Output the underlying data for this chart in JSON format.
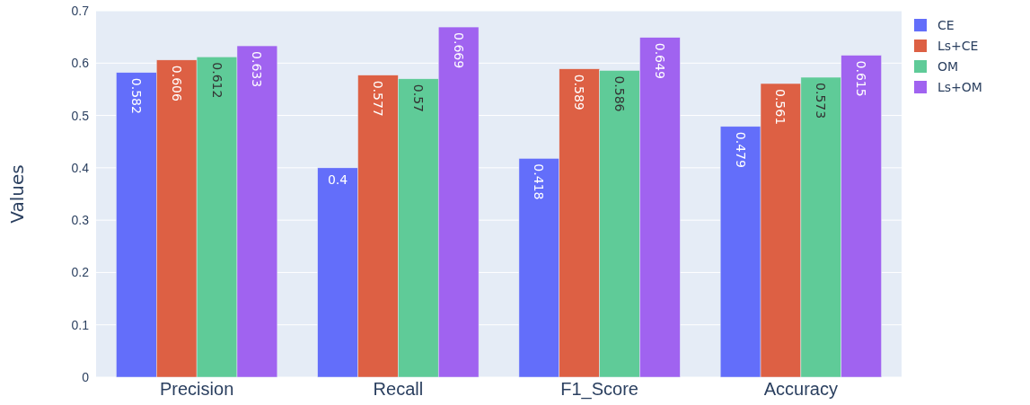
{
  "chart_data": {
    "type": "bar",
    "ylabel": "Values",
    "categories": [
      "Precision",
      "Recall",
      "F1_Score",
      "Accuracy"
    ],
    "series": [
      {
        "name": "CE",
        "color": "#636efa",
        "values": [
          0.582,
          0.4,
          0.418,
          0.479
        ]
      },
      {
        "name": "Ls+CE",
        "color": "#dd6044",
        "values": [
          0.606,
          0.577,
          0.589,
          0.561
        ]
      },
      {
        "name": "OM",
        "color": "#5fcb98",
        "values": [
          0.612,
          0.57,
          0.586,
          0.573
        ]
      },
      {
        "name": "Ls+OM",
        "color": "#a063f0",
        "values": [
          0.633,
          0.669,
          0.649,
          0.615
        ]
      }
    ],
    "ylim": [
      0,
      0.7
    ],
    "yticks": [
      0,
      0.1,
      0.2,
      0.3,
      0.4,
      0.5,
      0.6,
      0.7
    ],
    "grid": "y",
    "legend": "top right",
    "data_labels": true
  }
}
